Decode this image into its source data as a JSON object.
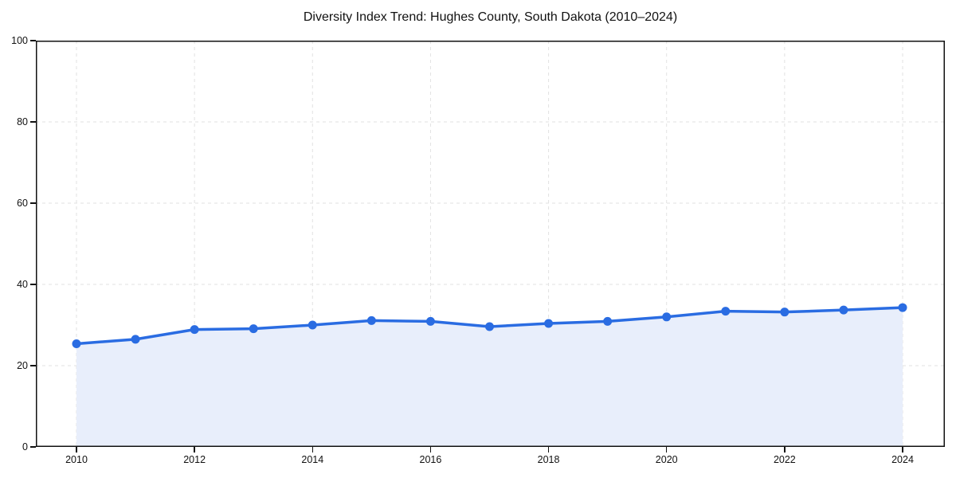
{
  "title": "Diversity Index Trend: Hughes County, South Dakota (2010–2024)",
  "chart_data": {
    "type": "area",
    "title": "Diversity Index Trend: Hughes County, South Dakota (2010–2024)",
    "x": [
      2010,
      2011,
      2012,
      2013,
      2014,
      2015,
      2016,
      2017,
      2018,
      2019,
      2020,
      2021,
      2022,
      2023,
      2024
    ],
    "values": [
      25.4,
      26.5,
      28.9,
      29.1,
      30.0,
      31.1,
      30.9,
      29.6,
      30.4,
      30.9,
      32.0,
      33.4,
      33.2,
      33.7,
      34.3
    ],
    "xlabel": "",
    "ylabel": "",
    "xlim": [
      2009.3,
      2024.7
    ],
    "ylim": [
      0,
      100
    ],
    "xticks": [
      2010,
      2012,
      2014,
      2016,
      2018,
      2020,
      2022,
      2024
    ],
    "yticks": [
      0,
      20,
      40,
      60,
      80,
      100
    ],
    "grid": true,
    "grid_style": "dashed",
    "legend": false,
    "colors": {
      "line": "#2a6ce2",
      "marker": "#2a6ce2",
      "area_fill": "#e8eefb",
      "gridline": "#e2e2e2",
      "axis": "#111111",
      "text": "#111111",
      "background": "#ffffff"
    }
  }
}
